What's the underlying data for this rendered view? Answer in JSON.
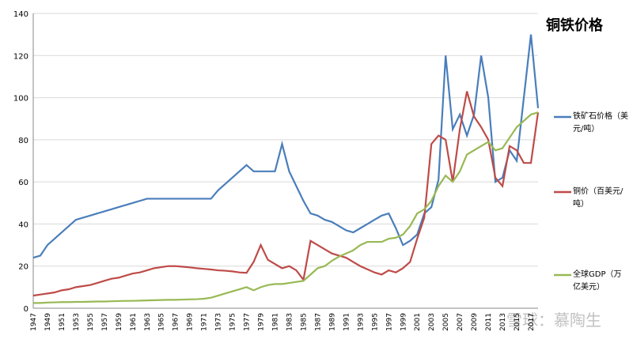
{
  "chart_data": {
    "type": "line",
    "title": "铜铁价格",
    "watermark": "雪球：慕陶生",
    "categories": [
      "1947",
      null,
      "1949",
      null,
      "1951",
      null,
      "1953",
      null,
      "1955",
      null,
      "1957",
      null,
      "1959",
      null,
      "1961",
      null,
      "1963",
      null,
      "1965",
      null,
      "1967",
      null,
      "1969",
      null,
      "1971",
      null,
      "1973",
      null,
      "1975",
      null,
      "1977",
      null,
      "1979",
      null,
      "1981",
      null,
      "1983",
      null,
      "1985",
      null,
      "1987",
      null,
      "1989",
      null,
      "1991",
      null,
      "1993",
      null,
      "1995",
      null,
      "1997",
      null,
      "1999",
      null,
      "2001",
      null,
      "2003",
      null,
      "2005",
      null,
      "2007",
      null,
      "2009",
      null,
      "2011",
      null,
      "2013",
      null,
      "2015",
      null,
      "2017",
      null
    ],
    "ylim": [
      0,
      140
    ],
    "yticks": [
      0,
      20,
      40,
      60,
      80,
      100,
      120,
      140
    ],
    "grid": true,
    "series": [
      {
        "name": "铁矿石价格（美元/吨）",
        "color": "#4a7ebb",
        "values": [
          24,
          25,
          30,
          33,
          36,
          39,
          42,
          43,
          44,
          45,
          46,
          47,
          48,
          49,
          50,
          51,
          52,
          52,
          52,
          52,
          52,
          52,
          52,
          52,
          52,
          52,
          56,
          59,
          62,
          65,
          68,
          65,
          65,
          65,
          65,
          78,
          65,
          58,
          51,
          45,
          44,
          42,
          41,
          39,
          37,
          36,
          38,
          40,
          42,
          44,
          45,
          38,
          30,
          32,
          35,
          45,
          48,
          61,
          120,
          85,
          92,
          82,
          92,
          120,
          100,
          60,
          62,
          75,
          70,
          100,
          130,
          95
        ]
      },
      {
        "name": "铜价（百美元/吨）",
        "color": "#be4b48",
        "values": [
          6,
          6.5,
          7,
          7.5,
          8.5,
          9,
          10,
          10.5,
          11,
          12,
          13,
          14,
          14.5,
          15.5,
          16.5,
          17,
          18,
          19,
          19.5,
          20,
          20,
          19.7,
          19.4,
          19,
          18.7,
          18.4,
          18,
          17.8,
          17.5,
          17,
          16.8,
          22,
          30,
          23,
          21,
          19,
          20,
          18,
          13.5,
          32,
          30,
          28,
          26,
          25,
          24,
          22,
          20,
          18.5,
          17,
          16,
          18,
          17,
          19,
          22,
          33,
          43,
          78,
          82,
          80,
          60,
          85,
          103,
          91,
          86,
          80,
          62,
          58,
          77,
          75,
          69,
          69,
          93
        ]
      },
      {
        "name": "全球GDP（万亿美元）",
        "color": "#98b954",
        "values": [
          2.5,
          2.5,
          2.7,
          2.8,
          2.9,
          2.9,
          3,
          3,
          3.1,
          3.2,
          3.2,
          3.3,
          3.4,
          3.5,
          3.5,
          3.6,
          3.7,
          3.8,
          3.9,
          4,
          4,
          4.1,
          4.2,
          4.3,
          4.5,
          5,
          6,
          7,
          8,
          9,
          10,
          8.5,
          10,
          11,
          11.5,
          11.5,
          12,
          12.5,
          13,
          16,
          19,
          20,
          22.5,
          24.5,
          26,
          27.5,
          30,
          31.5,
          31.5,
          31.5,
          33,
          33.5,
          35,
          39,
          45,
          47,
          51,
          58,
          63,
          60,
          65,
          73,
          75,
          77,
          79,
          75,
          76,
          81,
          86,
          89,
          92,
          93
        ]
      }
    ]
  }
}
